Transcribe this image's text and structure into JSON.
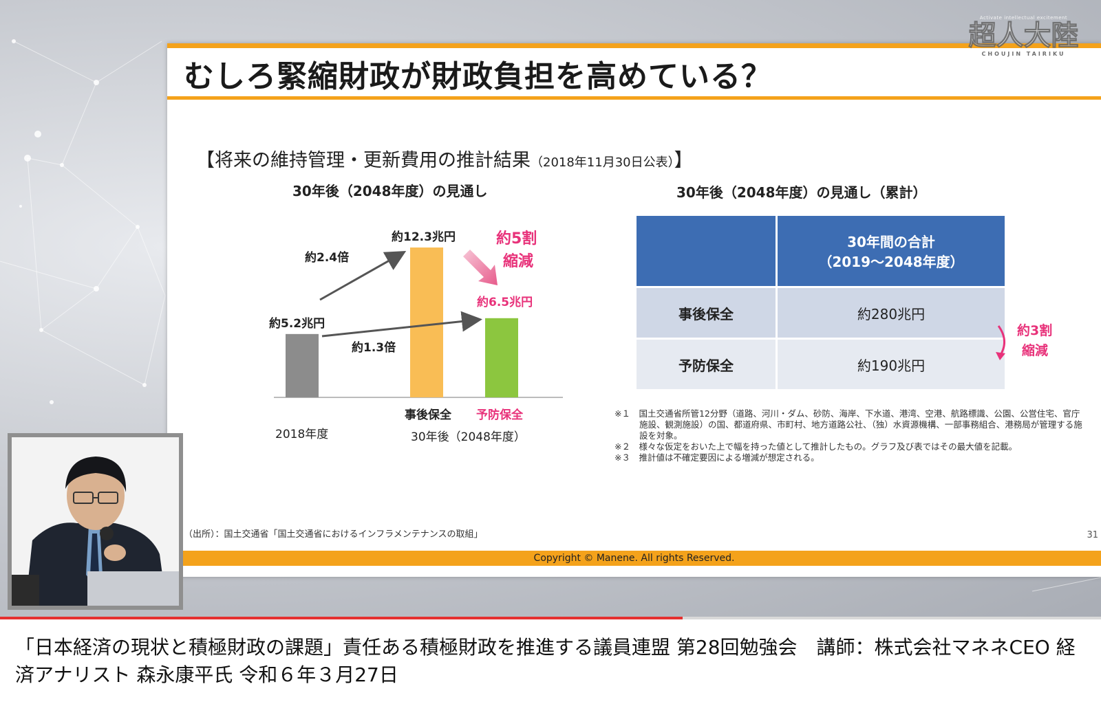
{
  "slide": {
    "title": "むしろ緊縮財政が財政負担を高めている？",
    "heading_main": "【将来の維持管理・更新費用の推計結果",
    "heading_note": "（2018年11月30日公表）",
    "heading_close": "】",
    "left_subtitle": "30年後（2048年度）の見通し",
    "right_subtitle": "30年後（2048年度）の見通し（累計）",
    "source": "（出所）：国土交通省「国土交通省におけるインフラメンテナンスの取組」",
    "page_number": "31",
    "copyright": "Copyright © Manene. All rights Reserved."
  },
  "chart_data": {
    "type": "bar",
    "categories": [
      "2018年度",
      "事後保全",
      "予防保全"
    ],
    "values": [
      5.2,
      12.3,
      6.5
    ],
    "value_labels": [
      "約5.2兆円",
      "約12.3兆円",
      "約6.5兆円"
    ],
    "colors": [
      "#8c8c8c",
      "#f9bd55",
      "#8cc63f"
    ],
    "x_group_label": "30年後（2048年度）",
    "annotations": {
      "ratio_high": "約2.4倍",
      "ratio_low": "約1.3倍",
      "reduction_line1": "約5割",
      "reduction_line2": "縮減"
    }
  },
  "cumulative_table": {
    "header_line1": "30年間の合計",
    "header_line2": "（2019～2048年度）",
    "rows": [
      {
        "label": "事後保全",
        "value": "約280兆円"
      },
      {
        "label": "予防保全",
        "value": "約190兆円"
      }
    ],
    "reduction_line1": "約3割",
    "reduction_line2": "縮減"
  },
  "notes": [
    "※１　国土交通省所管12分野（道路、河川・ダム、砂防、海岸、下水道、港湾、空港、航路標識、公園、公営住宅、官庁施設、観測施設）の国、都道府県、市町村、地方道路公社、（独）水資源機構、一部事務組合、港務局が管理する施設を対象。",
    "※２　様々な仮定をおいた上で幅を持った値として推計したもの。グラフ及び表ではその最大値を記載。",
    "※３　推計値は不確定要因による増減が想定される。"
  ],
  "logo": {
    "tagline": "Activate intellectual excitement",
    "name": "超人大陸",
    "romaji": "CHOUJIN TAIRIKU"
  },
  "player": {
    "progress": 0.62
  },
  "video_title": "「日本経済の現状と積極財政の課題」責任ある積極財政を推進する議員連盟 第28回勉強会　講師：株式会社マネネCEO 経済アナリスト 森永康平氏 令和６年３月27日",
  "colors": {
    "accent_orange": "#f4a21b",
    "table_header": "#3d6db3",
    "highlight_pink": "#e8327a"
  }
}
